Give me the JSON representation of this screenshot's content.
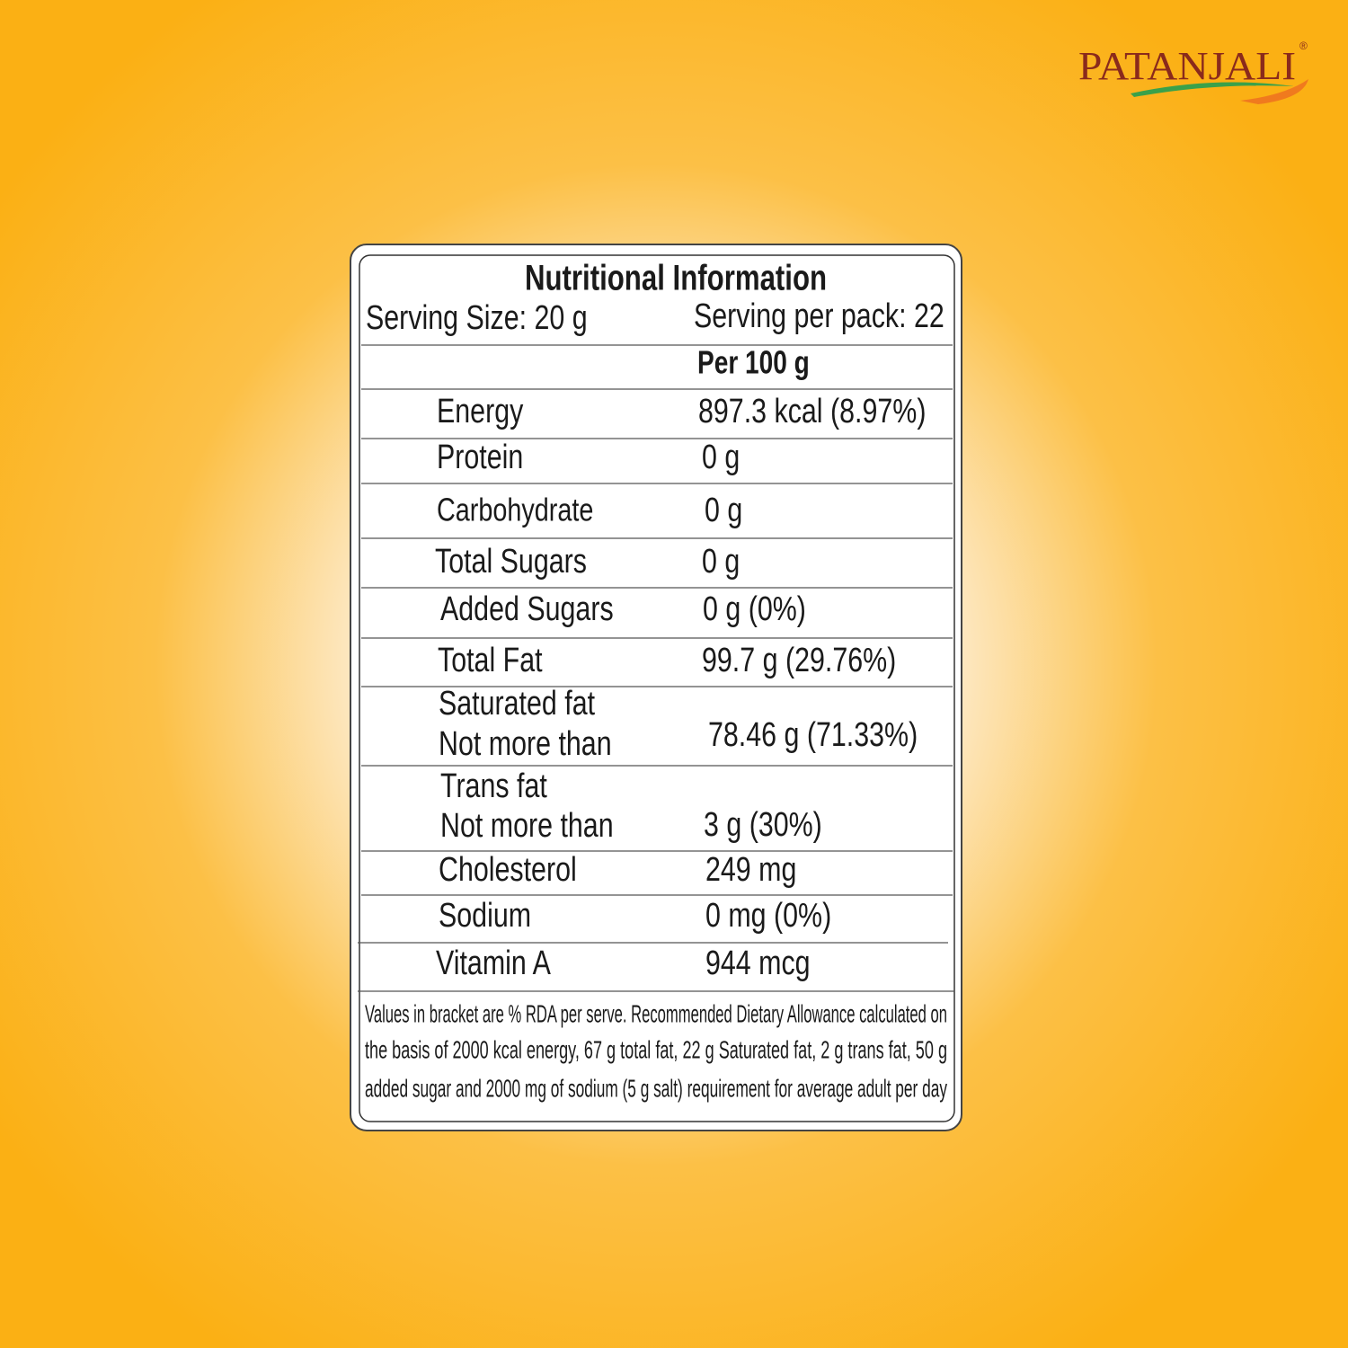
{
  "brand": {
    "name": "PATANJALI",
    "mark": "®"
  },
  "label": {
    "title": "Nutritional Information",
    "serving_size": "Serving Size:  20 g",
    "servings_per_pack": "Serving per pack: 22",
    "column_header": "Per 100 g",
    "rows": [
      {
        "name": [
          "Energy"
        ],
        "value": "897.3  kcal (8.97%)"
      },
      {
        "name": [
          "Protein"
        ],
        "value": "0 g"
      },
      {
        "name": [
          "Carbohydrate"
        ],
        "value": "0 g"
      },
      {
        "name": [
          "Total Sugars"
        ],
        "value": "0 g"
      },
      {
        "name": [
          "Added Sugars"
        ],
        "value": "0 g (0%)"
      },
      {
        "name": [
          "Total Fat"
        ],
        "value": "99.7 g (29.76%)"
      },
      {
        "name": [
          "Saturated fat",
          "Not more than"
        ],
        "value": "78.46 g (71.33%)"
      },
      {
        "name": [
          "Trans fat",
          "Not more than"
        ],
        "value": "3 g (30%)"
      },
      {
        "name": [
          "Cholesterol"
        ],
        "value": "249 mg"
      },
      {
        "name": [
          "Sodium"
        ],
        "value": "0 mg (0%)"
      },
      {
        "name": [
          "Vitamin A"
        ],
        "value": "944 mcg"
      }
    ],
    "footnote": [
      "Values in bracket are % RDA per serve. Recommended Dietary Allowance calculated on",
      "the basis of 2000 kcal energy, 67 g total fat, 22 g Saturated fat, 2 g trans fat, 50 g",
      "added sugar and 2000 mg of sodium (5 g salt) requirement for average adult per day"
    ]
  }
}
